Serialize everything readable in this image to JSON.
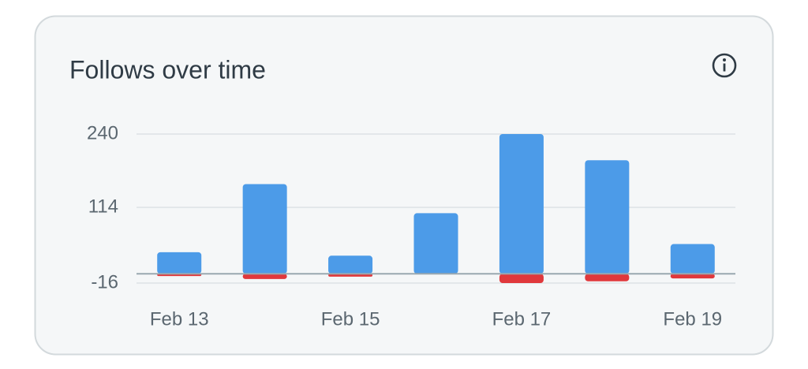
{
  "chart_data": {
    "type": "bar",
    "title": "Follows over time",
    "categories": [
      "Feb 13",
      null,
      "Feb 15",
      null,
      "Feb 17",
      null,
      "Feb 19"
    ],
    "series": [
      {
        "color": "#4c9be8",
        "values": [
          37,
          154,
          31,
          104,
          240,
          195,
          51
        ]
      },
      {
        "color": "#e0383c",
        "values": [
          -4,
          -9,
          -5,
          -1,
          -16,
          -13,
          -8
        ]
      }
    ],
    "ylim": [
      -16,
      240
    ],
    "yticks": [
      -16,
      114,
      240
    ],
    "grid": true
  }
}
